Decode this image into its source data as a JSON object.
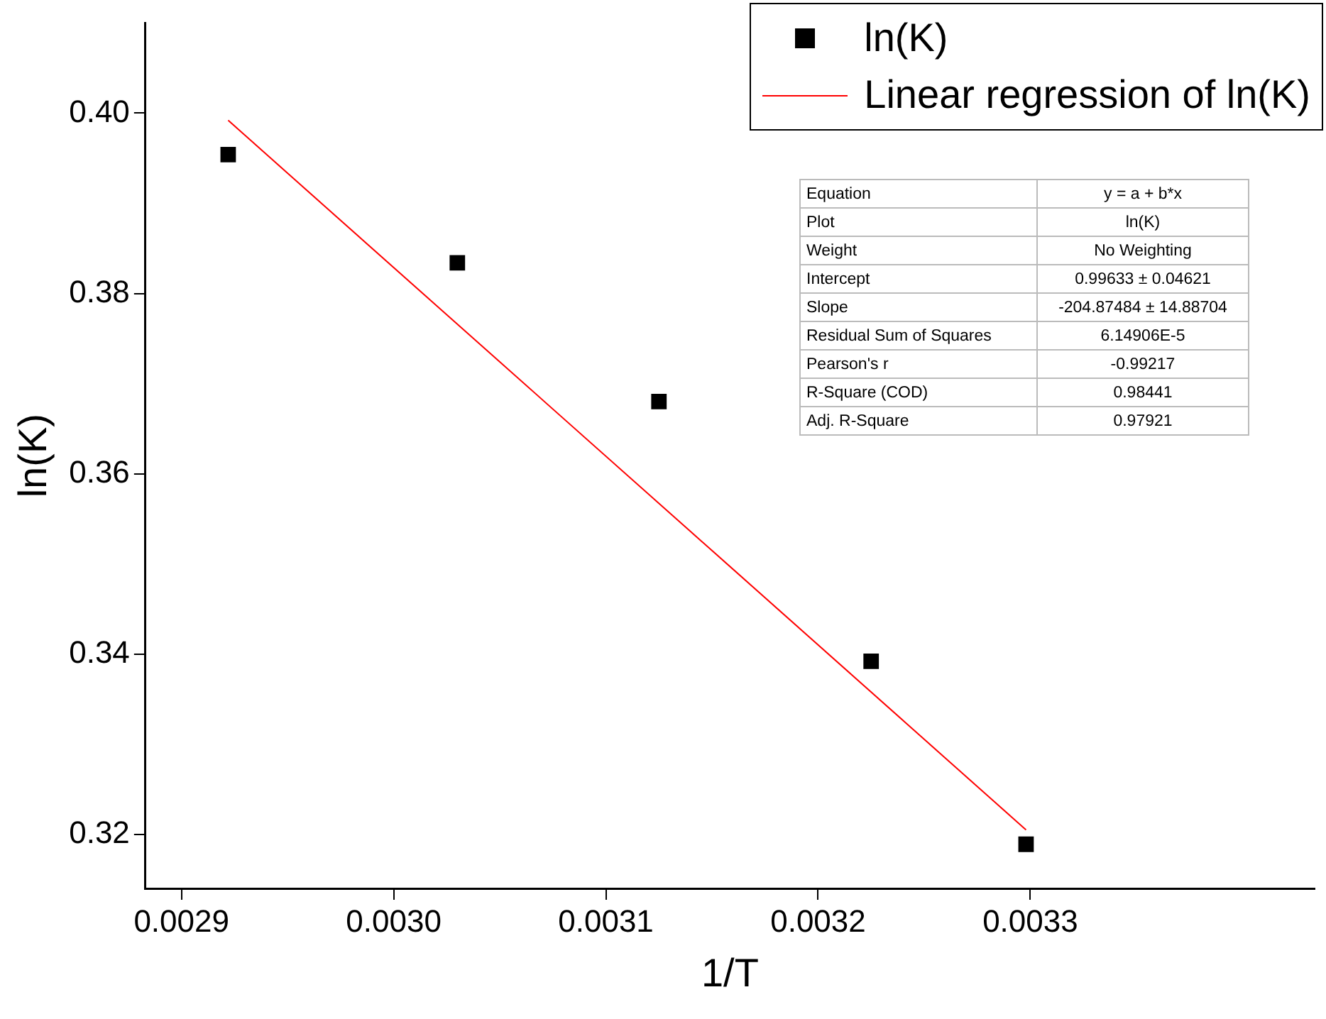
{
  "chart_data": {
    "type": "scatter",
    "xlabel": "1/T",
    "ylabel": "ln(K)",
    "xlim": [
      0.002883,
      0.003434
    ],
    "xticks": [
      {
        "value": 0.0029,
        "label": "0.0029"
      },
      {
        "value": 0.003,
        "label": "0.0030"
      },
      {
        "value": 0.0031,
        "label": "0.0031"
      },
      {
        "value": 0.0032,
        "label": "0.0032"
      },
      {
        "value": 0.0033,
        "label": "0.0033"
      }
    ],
    "ylim": [
      0.314,
      0.41
    ],
    "yticks": [
      {
        "value": 0.32,
        "label": "0.32"
      },
      {
        "value": 0.34,
        "label": "0.34"
      },
      {
        "value": 0.36,
        "label": "0.36"
      },
      {
        "value": 0.38,
        "label": "0.38"
      },
      {
        "value": 0.4,
        "label": "0.40"
      }
    ],
    "grid": false,
    "legend": "top right",
    "marker": "square",
    "series": [
      {
        "name": "ln(K)",
        "type": "scatter",
        "color": "#000000",
        "x": [
          0.002922,
          0.00303,
          0.003125,
          0.003225,
          0.003298
        ],
        "values": [
          0.3954,
          0.3834,
          0.368,
          0.3392,
          0.3189
        ]
      },
      {
        "name": "Linear regression of ln(K)",
        "type": "line",
        "color": "#ff0000",
        "marker": "none",
        "line_style": "solid",
        "x": [
          0.002922,
          0.003298
        ],
        "values": [
          0.3992,
          0.3205
        ]
      }
    ],
    "annotations": [
      "Equation",
      "y = a + b*x",
      "Plot",
      "ln(K)",
      "Weight",
      "No Weighting",
      "Intercept",
      "0.99633 ± 0.04621",
      "Slope",
      "-204.87484 ± 14.88704",
      "Residual Sum of Squares",
      "6.14906E-5",
      "Pearson's r",
      "-0.99217",
      "R-Square (COD)",
      "0.98441",
      "Adj. R-Square",
      "0.97921"
    ]
  }
}
